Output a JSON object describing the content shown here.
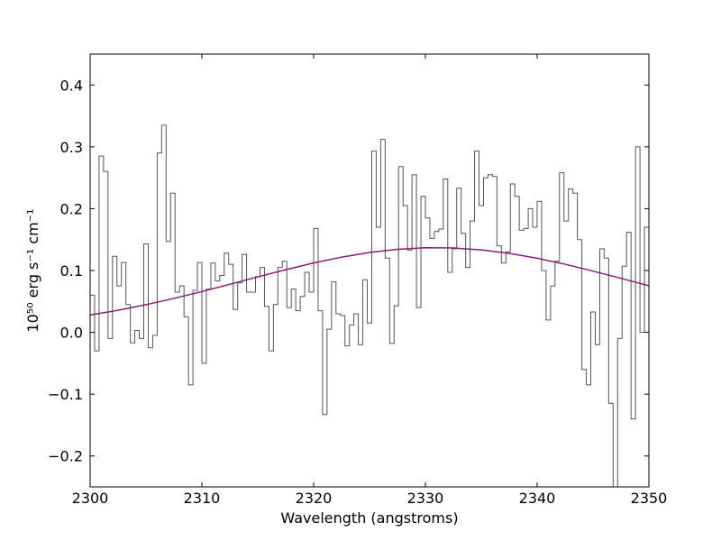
{
  "chart_data": {
    "type": "line",
    "xlabel": "Wavelength (angstroms)",
    "ylabel": "10⁵⁰ erg s⁻¹ cm⁻¹",
    "xlim": [
      2300,
      2350
    ],
    "ylim": [
      -0.25,
      0.45
    ],
    "xticks": [
      2300,
      2310,
      2320,
      2330,
      2340,
      2350
    ],
    "yticks": [
      {
        "value": -0.2,
        "label": "−0.2"
      },
      {
        "value": -0.1,
        "label": "−0.1"
      },
      {
        "value": 0,
        "label": "0.0"
      },
      {
        "value": 0.1,
        "label": "0.1"
      },
      {
        "value": 0.2,
        "label": "0.2"
      },
      {
        "value": 0.3,
        "label": "0.3"
      },
      {
        "value": 0.4,
        "label": "0.4"
      }
    ],
    "series": [
      {
        "color": "#555555",
        "drawstyle": "steps-post",
        "x": [
          2300.0,
          2300.4,
          2300.8,
          2301.2,
          2301.6,
          2302.0,
          2302.4,
          2302.8,
          2303.2,
          2303.6,
          2304.0,
          2304.4,
          2304.8,
          2305.2,
          2305.6,
          2306.0,
          2306.4,
          2306.8,
          2307.2,
          2307.6,
          2308.0,
          2308.4,
          2308.8,
          2309.2,
          2309.6,
          2310.0,
          2310.4,
          2310.8,
          2311.2,
          2311.6,
          2312.0,
          2312.4,
          2312.8,
          2313.2,
          2313.6,
          2314.0,
          2314.4,
          2314.8,
          2315.2,
          2315.6,
          2316.0,
          2316.4,
          2316.8,
          2317.2,
          2317.6,
          2318.0,
          2318.4,
          2318.8,
          2319.2,
          2319.6,
          2320.0,
          2320.4,
          2320.8,
          2321.2,
          2321.6,
          2322.0,
          2322.4,
          2322.8,
          2323.2,
          2323.6,
          2324.0,
          2324.4,
          2324.8,
          2325.2,
          2325.6,
          2326.0,
          2326.4,
          2326.8,
          2327.2,
          2327.6,
          2328.0,
          2328.4,
          2328.8,
          2329.2,
          2329.6,
          2330.0,
          2330.4,
          2330.8,
          2331.2,
          2331.6,
          2332.0,
          2332.4,
          2332.8,
          2333.2,
          2333.6,
          2334.0,
          2334.4,
          2334.8,
          2335.2,
          2335.6,
          2336.0,
          2336.4,
          2336.8,
          2337.2,
          2337.6,
          2338.0,
          2338.4,
          2338.8,
          2339.2,
          2339.6,
          2340.0,
          2340.4,
          2340.8,
          2341.2,
          2341.6,
          2342.0,
          2342.4,
          2342.8,
          2343.2,
          2343.6,
          2344.0,
          2344.4,
          2344.8,
          2345.2,
          2345.6,
          2346.0,
          2346.4,
          2346.8,
          2347.2,
          2347.6,
          2348.0,
          2348.4,
          2348.8,
          2349.2,
          2349.6
        ],
        "values": [
          0.06,
          -0.03,
          0.285,
          0.26,
          -0.01,
          0.123,
          0.075,
          0.113,
          0.045,
          -0.017,
          0.003,
          -0.01,
          0.143,
          -0.025,
          -0.005,
          0.29,
          0.335,
          0.147,
          0.225,
          0.065,
          0.075,
          0.025,
          -0.085,
          0.068,
          0.113,
          -0.05,
          0.07,
          0.112,
          0.083,
          0.092,
          0.128,
          0.11,
          0.037,
          0.08,
          0.126,
          0.065,
          0.065,
          0.09,
          0.105,
          0.042,
          -0.03,
          0.045,
          0.105,
          0.115,
          0.04,
          0.07,
          0.035,
          0.058,
          0.097,
          0.065,
          0.168,
          0.035,
          -0.133,
          0.005,
          0.082,
          0.03,
          0.027,
          -0.022,
          0.012,
          0.03,
          -0.02,
          0.085,
          0.015,
          0.293,
          0.17,
          0.312,
          0.12,
          -0.018,
          0.043,
          0.268,
          0.205,
          0.133,
          0.255,
          0.04,
          0.22,
          0.185,
          0.152,
          0.163,
          0.167,
          0.248,
          0.097,
          0.135,
          0.233,
          0.16,
          0.105,
          0.18,
          0.293,
          0.205,
          0.25,
          0.255,
          0.252,
          0.14,
          0.112,
          0.13,
          0.24,
          0.22,
          0.165,
          0.168,
          0.2,
          0.17,
          0.212,
          0.1,
          0.02,
          0.075,
          0.115,
          0.258,
          0.18,
          0.232,
          0.225,
          0.15,
          -0.06,
          -0.085,
          0.033,
          -0.02,
          0.135,
          0.12,
          -0.115,
          -0.25,
          -0.01,
          0.107,
          0.162,
          -0.14,
          0.3,
          0.0,
          0.17
        ]
      },
      {
        "color": "#8b1a7a",
        "drawstyle": "default",
        "x": [
          2300,
          2302.5,
          2305,
          2307.5,
          2310,
          2312.5,
          2315,
          2317.5,
          2320,
          2322.5,
          2325,
          2327.5,
          2330,
          2332.5,
          2335,
          2337.5,
          2340,
          2342.5,
          2345,
          2347.5,
          2350
        ],
        "values": [
          0.028,
          0.0357,
          0.0447,
          0.0549,
          0.066,
          0.0777,
          0.0897,
          0.1013,
          0.1122,
          0.1216,
          0.1291,
          0.1342,
          0.1368,
          0.1365,
          0.1334,
          0.1277,
          0.1198,
          0.1101,
          0.099,
          0.0873,
          0.0754
        ]
      }
    ]
  }
}
